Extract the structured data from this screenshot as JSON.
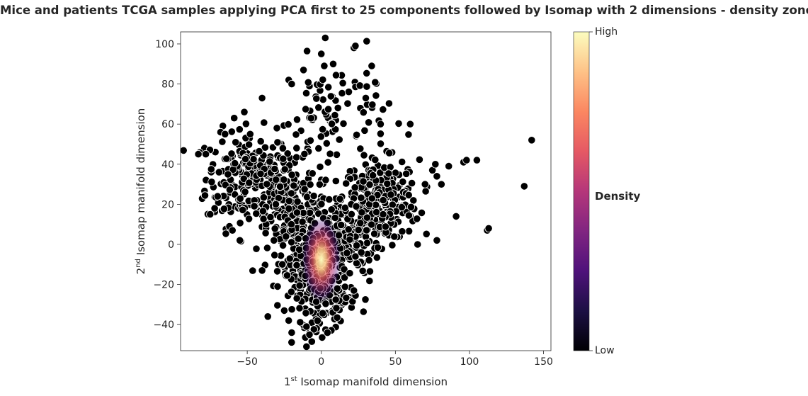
{
  "chart_data": {
    "type": "scatter",
    "title": "Mice and patients TCGA samples applying PCA first to 25 components followed by Isomap with 2 dimensions - density zones",
    "xlabel": {
      "prefix": "1",
      "sup": "st",
      "text": " Isomap manifold dimension"
    },
    "ylabel": {
      "prefix": "2",
      "sup": "nd",
      "text": " Isomap manifold dimension"
    },
    "xlim": [
      -95,
      155
    ],
    "ylim": [
      -53,
      106
    ],
    "xticks": [
      -50,
      0,
      50,
      100,
      150
    ],
    "xtick_labels": [
      "−50",
      "0",
      "50",
      "100",
      "150"
    ],
    "yticks": [
      -40,
      -20,
      0,
      20,
      40,
      60,
      80,
      100
    ],
    "ytick_labels": [
      "−40",
      "−20",
      "0",
      "20",
      "40",
      "60",
      "80",
      "100"
    ],
    "grid": false,
    "colorbar": {
      "label": "Density",
      "high": "High",
      "low": "Low",
      "colormap": "magma",
      "colors": [
        "#000004",
        "#1c1044",
        "#4f127b",
        "#812581",
        "#b5367a",
        "#e55964",
        "#fb8761",
        "#fec287",
        "#fcfdbf"
      ]
    },
    "point_color": "#000000",
    "point_edge_color": "#ffffff",
    "clusters": [
      {
        "center": [
          -50,
          33
        ],
        "spread": [
          14,
          12
        ],
        "n": 220
      },
      {
        "center": [
          -20,
          20
        ],
        "spread": [
          12,
          12
        ],
        "n": 180
      },
      {
        "center": [
          40,
          22
        ],
        "spread": [
          13,
          10
        ],
        "n": 260
      },
      {
        "center": [
          15,
          5
        ],
        "spread": [
          12,
          10
        ],
        "n": 160
      },
      {
        "center": [
          -5,
          -15
        ],
        "spread": [
          11,
          12
        ],
        "n": 260
      },
      {
        "center": [
          5,
          -25
        ],
        "spread": [
          9,
          8
        ],
        "n": 90
      },
      {
        "center": [
          10,
          65
        ],
        "spread": [
          18,
          14
        ],
        "n": 90
      }
    ],
    "extra_points": [
      [
        -83,
        45
      ],
      [
        -75,
        15
      ],
      [
        -72,
        18
      ],
      [
        -70,
        24
      ],
      [
        -68,
        56
      ],
      [
        -62,
        9
      ],
      [
        -60,
        7
      ],
      [
        -52,
        66
      ],
      [
        -48,
        55
      ],
      [
        -40,
        73
      ],
      [
        -30,
        58
      ],
      [
        -22,
        82
      ],
      [
        -20,
        80
      ],
      [
        -12,
        87
      ],
      [
        0,
        95
      ],
      [
        2,
        89
      ],
      [
        8,
        90
      ],
      [
        22,
        98
      ],
      [
        23,
        99
      ],
      [
        30,
        73
      ],
      [
        34,
        89
      ],
      [
        40,
        60
      ],
      [
        60,
        60
      ],
      [
        -65,
        55
      ],
      [
        -78,
        45
      ],
      [
        70,
        30
      ],
      [
        75,
        37
      ],
      [
        77,
        40
      ],
      [
        78,
        34
      ],
      [
        86,
        39
      ],
      [
        96,
        41
      ],
      [
        98,
        42
      ],
      [
        105,
        42
      ],
      [
        137,
        29
      ],
      [
        142,
        52
      ],
      [
        112,
        7
      ],
      [
        113,
        8
      ],
      [
        91,
        14
      ],
      [
        78,
        2
      ],
      [
        65,
        0
      ],
      [
        -10,
        -41
      ],
      [
        -8,
        -45
      ],
      [
        -20,
        -44
      ],
      [
        -25,
        -33
      ],
      [
        -22,
        -38
      ],
      [
        -40,
        -13
      ],
      [
        -55,
        2
      ],
      [
        -32,
        2
      ],
      [
        23,
        -6
      ],
      [
        27,
        -4
      ]
    ],
    "density_hotspot": {
      "center": [
        0,
        0
      ],
      "spread": [
        6,
        12
      ]
    }
  }
}
